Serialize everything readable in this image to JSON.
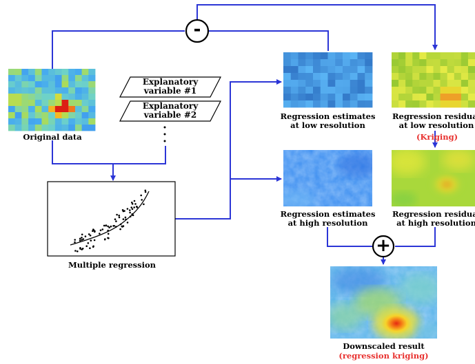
{
  "operators": {
    "minus": "-",
    "plus": "+"
  },
  "original": {
    "label": "Original data"
  },
  "explanatory": {
    "var1": [
      "Explanatory",
      "variable #1"
    ],
    "var2": [
      "Explanatory",
      "variable #2"
    ]
  },
  "regression": {
    "label": "Multiple regression"
  },
  "reg_low": {
    "label": [
      "Regression estimates",
      "at low resolution"
    ]
  },
  "res_low": {
    "label": [
      "Regression residual",
      "at low resolution"
    ],
    "method": "(Kriging)"
  },
  "reg_high": {
    "label": [
      "Regression estimates",
      "at high resolution"
    ]
  },
  "res_high": {
    "label": [
      "Regression residual",
      "at high resolution"
    ]
  },
  "downscaled": {
    "label": "Downscaled result",
    "method": "(regression kriging)"
  },
  "colors": {
    "connector": "#2b35d6",
    "method_text": "#e8312f"
  }
}
